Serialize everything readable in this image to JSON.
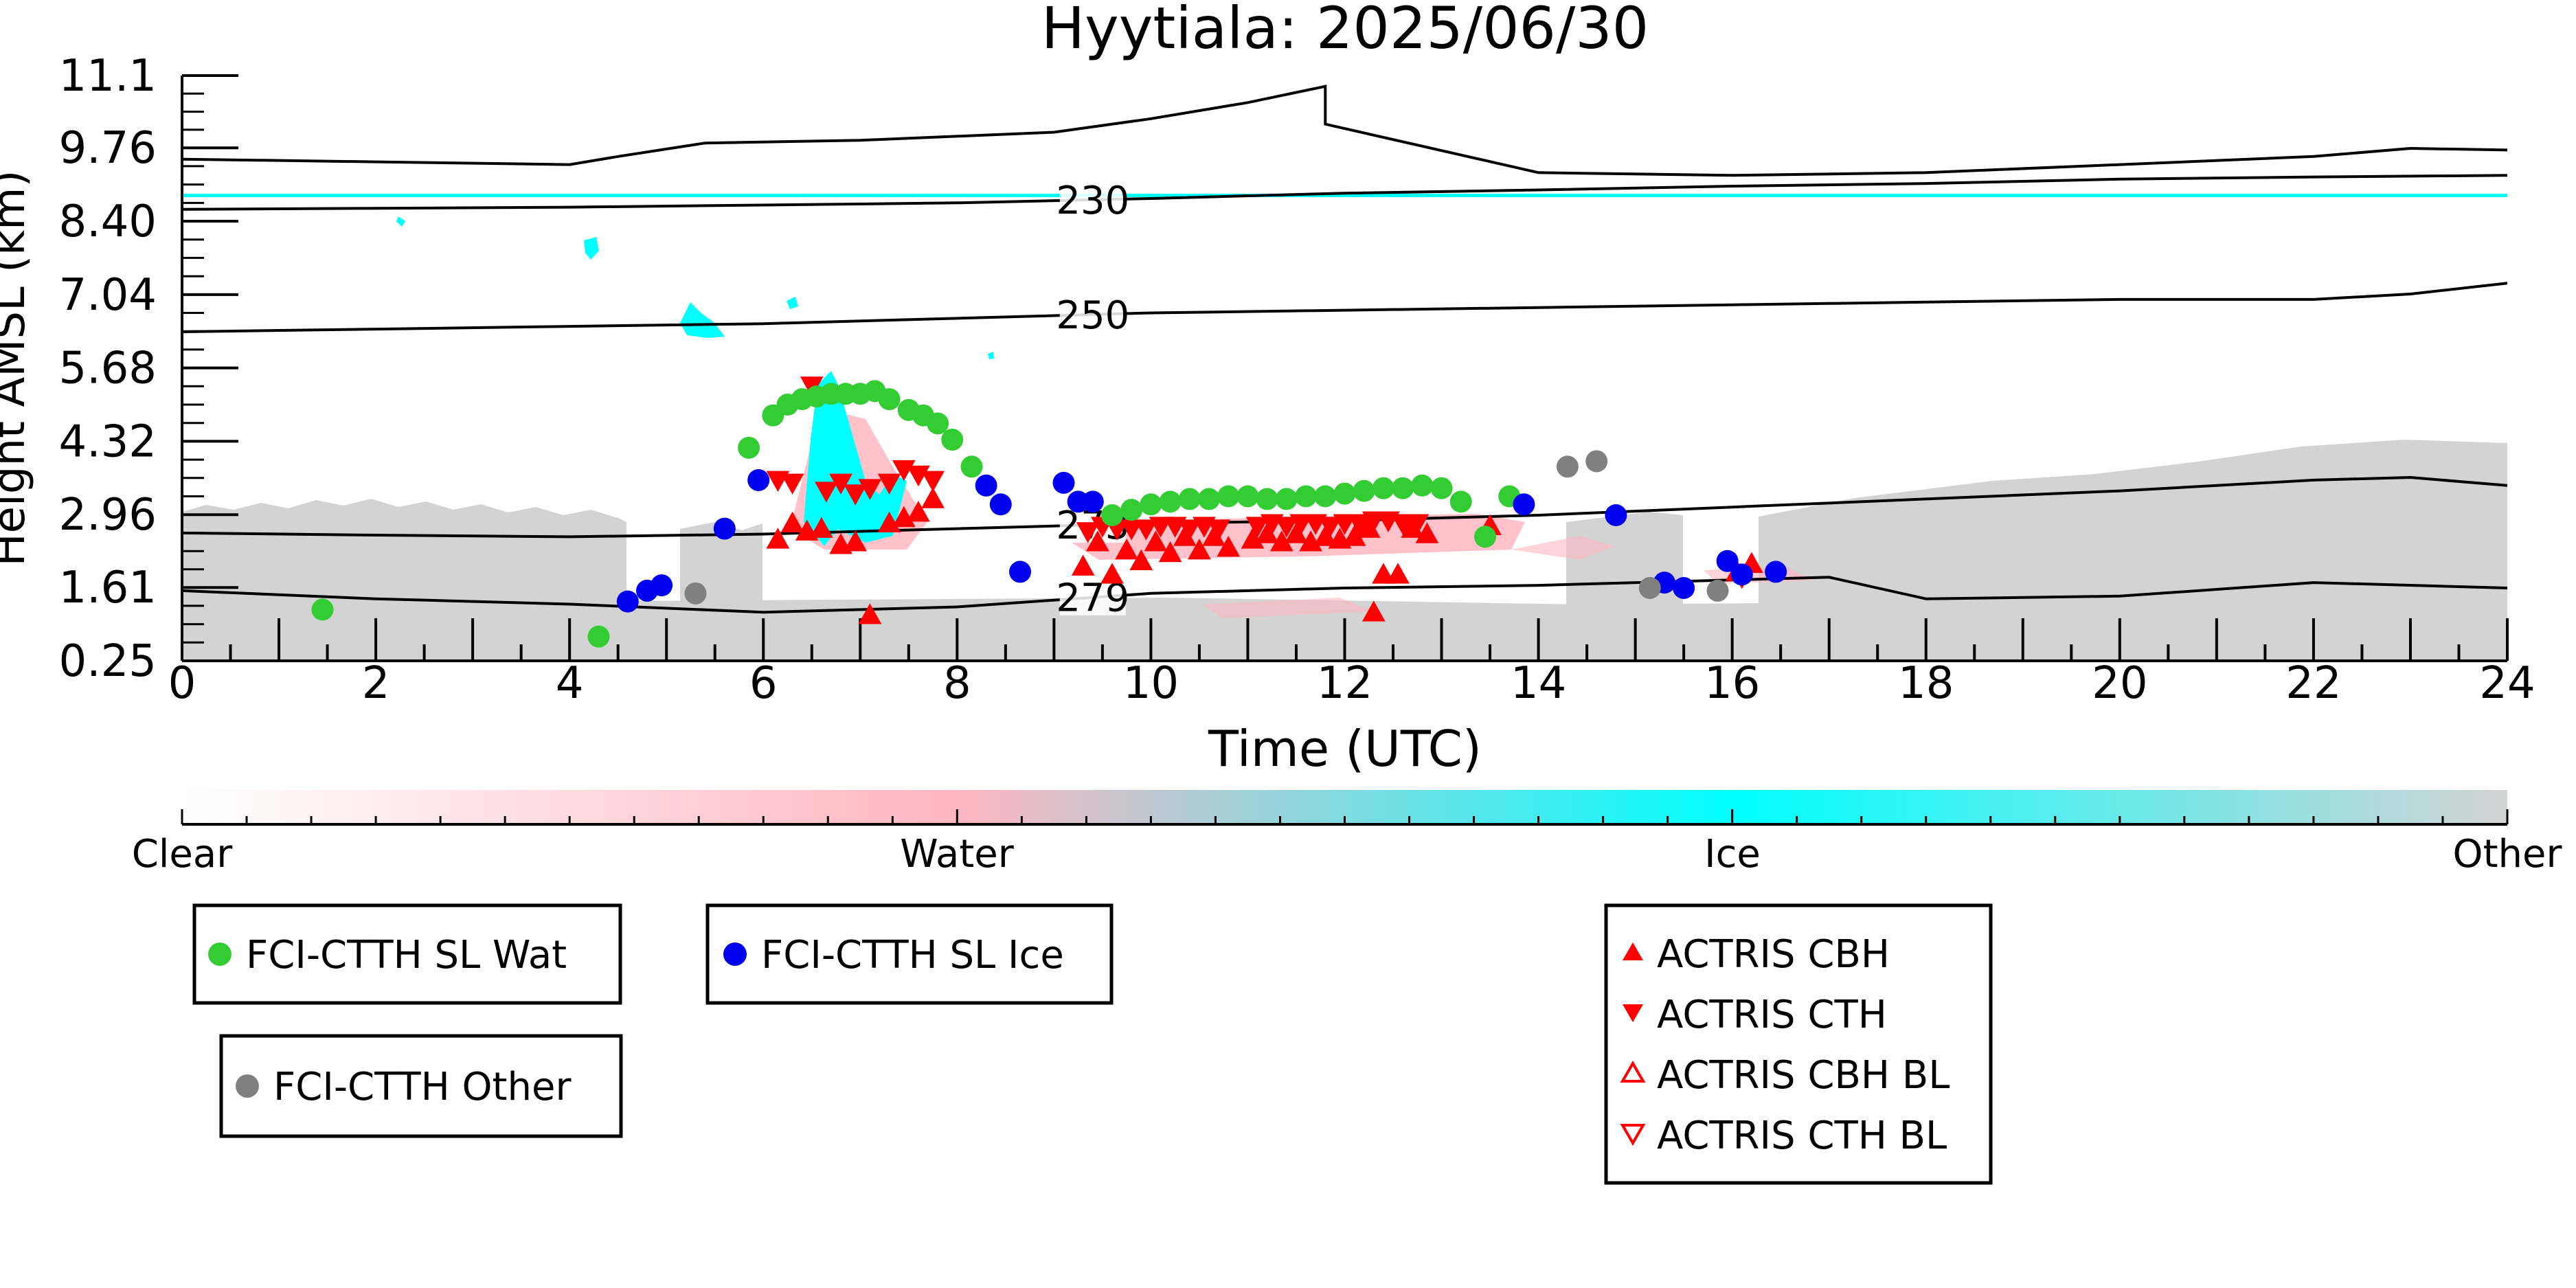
{
  "chart_data": {
    "type": "scatter",
    "title": "Hyytiala: 2025/06/30",
    "xlabel": "Time (UTC)",
    "ylabel": "Height AMSL (km)",
    "xlim": [
      0,
      24
    ],
    "ylim": [
      0.25,
      11.1
    ],
    "x_ticks": [
      "0",
      "2",
      "4",
      "6",
      "8",
      "10",
      "12",
      "14",
      "16",
      "18",
      "20",
      "22",
      "24"
    ],
    "y_ticks": [
      "0.25",
      "1.61",
      "2.96",
      "4.32",
      "5.68",
      "7.04",
      "8.40",
      "9.76",
      "11.1"
    ],
    "grid": false,
    "colorbar": {
      "labels": [
        "Clear",
        "Water",
        "Ice",
        "Other"
      ],
      "colors": [
        "#ffffff",
        "#ffb6c1",
        "#00ffff",
        "#d3d3d3"
      ]
    },
    "contours": [
      {
        "label": "279",
        "x": [
          0,
          2,
          4,
          6,
          8,
          10,
          12,
          14,
          16,
          17,
          18,
          20,
          22,
          24
        ],
        "y": [
          1.55,
          1.4,
          1.3,
          1.15,
          1.25,
          1.5,
          1.6,
          1.65,
          1.75,
          1.8,
          1.4,
          1.45,
          1.7,
          1.6
        ]
      },
      {
        "label": "273",
        "x": [
          0,
          2,
          4,
          6,
          8,
          10,
          12,
          14,
          16,
          18,
          20,
          22,
          23,
          24
        ],
        "y": [
          2.62,
          2.58,
          2.55,
          2.6,
          2.7,
          2.8,
          2.85,
          2.95,
          3.1,
          3.25,
          3.4,
          3.6,
          3.65,
          3.5
        ]
      },
      {
        "label": "250",
        "x": [
          0,
          2,
          4,
          6,
          8,
          10,
          12,
          14,
          16,
          18,
          20,
          22,
          23,
          24
        ],
        "y": [
          6.35,
          6.4,
          6.45,
          6.5,
          6.6,
          6.7,
          6.75,
          6.8,
          6.85,
          6.9,
          6.95,
          6.95,
          7.05,
          7.25
        ]
      },
      {
        "label": "230",
        "x": [
          0,
          2,
          4,
          6,
          8,
          10,
          12,
          14,
          16,
          18,
          20,
          22,
          24
        ],
        "y": [
          8.62,
          8.64,
          8.66,
          8.7,
          8.74,
          8.82,
          8.92,
          8.98,
          9.05,
          9.1,
          9.18,
          9.22,
          9.25
        ]
      },
      {
        "label": "",
        "x": [
          0,
          2,
          4,
          4.5,
          5.4,
          7,
          9,
          10,
          11,
          11.8,
          11.8,
          14,
          16,
          18,
          20,
          22,
          23,
          24
        ],
        "y": [
          9.55,
          9.5,
          9.45,
          9.6,
          9.85,
          9.9,
          10.05,
          10.3,
          10.6,
          10.9,
          10.2,
          9.3,
          9.25,
          9.3,
          9.45,
          9.6,
          9.75,
          9.72
        ]
      }
    ],
    "series": [
      {
        "name": "FCI-CTTH SL Wat",
        "marker": "circle",
        "color": "#33cc33",
        "x": [
          1.45,
          4.3,
          5.85,
          6.1,
          6.25,
          6.4,
          6.55,
          6.7,
          6.85,
          7.0,
          7.15,
          7.3,
          7.5,
          7.65,
          7.8,
          7.95,
          8.15,
          9.6,
          9.8,
          10.0,
          10.2,
          10.4,
          10.6,
          10.8,
          11.0,
          11.2,
          11.4,
          11.6,
          11.8,
          12.0,
          12.2,
          12.4,
          12.6,
          12.8,
          13.0,
          13.2,
          13.45,
          13.7
        ],
        "y": [
          1.2,
          0.7,
          4.2,
          4.8,
          5.0,
          5.1,
          5.15,
          5.2,
          5.2,
          5.2,
          5.25,
          5.1,
          4.9,
          4.8,
          4.65,
          4.35,
          3.85,
          2.95,
          3.05,
          3.15,
          3.2,
          3.25,
          3.25,
          3.3,
          3.3,
          3.25,
          3.25,
          3.3,
          3.3,
          3.35,
          3.4,
          3.45,
          3.45,
          3.5,
          3.45,
          3.2,
          2.55,
          3.3
        ]
      },
      {
        "name": "FCI-CTTH SL Ice",
        "marker": "circle",
        "color": "#0000ee",
        "x": [
          4.6,
          4.8,
          4.95,
          5.6,
          5.95,
          8.3,
          8.45,
          8.65,
          9.1,
          9.25,
          9.4,
          13.85,
          14.8,
          15.3,
          15.5,
          15.95,
          16.1,
          16.45
        ],
        "y": [
          1.35,
          1.55,
          1.65,
          2.7,
          3.6,
          3.5,
          3.15,
          1.9,
          3.55,
          3.2,
          3.2,
          3.15,
          2.95,
          1.7,
          1.6,
          2.1,
          1.85,
          1.9
        ]
      },
      {
        "name": "FCI-CTTH Other",
        "marker": "circle",
        "color": "#808080",
        "x": [
          5.3,
          14.3,
          14.6,
          15.15,
          15.85
        ],
        "y": [
          1.5,
          3.85,
          3.95,
          1.6,
          1.55
        ]
      },
      {
        "name": "ACTRIS CBH",
        "marker": "triangle-up",
        "color": "#ff0000",
        "x": [
          6.15,
          6.3,
          6.45,
          6.6,
          6.8,
          6.95,
          7.1,
          7.3,
          7.45,
          7.6,
          7.75,
          9.3,
          9.45,
          9.6,
          9.75,
          9.9,
          10.05,
          10.2,
          10.35,
          10.5,
          10.65,
          10.8,
          11.05,
          11.2,
          11.35,
          11.5,
          11.65,
          11.8,
          11.95,
          12.1,
          12.25,
          12.4,
          12.55,
          12.7,
          12.85,
          13.5,
          16.05,
          16.2,
          12.3
        ],
        "y": [
          2.5,
          2.8,
          2.65,
          2.7,
          2.4,
          2.45,
          1.1,
          2.8,
          2.9,
          3.0,
          3.25,
          2.0,
          2.45,
          1.85,
          2.3,
          2.1,
          2.45,
          2.25,
          2.55,
          2.3,
          2.55,
          2.35,
          2.5,
          2.6,
          2.45,
          2.6,
          2.45,
          2.55,
          2.5,
          2.55,
          2.7,
          1.85,
          1.85,
          2.7,
          2.6,
          2.75,
          1.9,
          2.05,
          1.15
        ]
      },
      {
        "name": "ACTRIS CTH",
        "marker": "triangle-down",
        "color": "#ff0000",
        "x": [
          6.15,
          6.3,
          6.5,
          6.65,
          6.8,
          6.95,
          7.1,
          7.3,
          7.45,
          7.6,
          7.75,
          9.35,
          9.5,
          9.65,
          9.8,
          9.95,
          10.1,
          10.25,
          10.4,
          10.55,
          10.7,
          11.1,
          11.25,
          11.4,
          11.55,
          11.7,
          11.85,
          12.0,
          12.15,
          12.3,
          12.45,
          12.6,
          12.75,
          16.1
        ],
        "y": [
          3.6,
          3.55,
          5.35,
          3.4,
          3.55,
          3.35,
          3.45,
          3.55,
          3.8,
          3.7,
          3.6,
          2.65,
          2.75,
          2.7,
          2.7,
          2.7,
          2.75,
          2.75,
          2.7,
          2.75,
          2.7,
          2.75,
          2.8,
          2.75,
          2.8,
          2.8,
          2.75,
          2.8,
          2.8,
          2.85,
          2.85,
          2.8,
          2.8,
          1.8
        ]
      },
      {
        "name": "ACTRIS CBH BL",
        "marker": "triangle-up-open",
        "color": "#ff0000",
        "x": [],
        "y": []
      },
      {
        "name": "ACTRIS CTH BL",
        "marker": "triangle-down-open",
        "color": "#ff0000",
        "x": [],
        "y": []
      }
    ]
  }
}
